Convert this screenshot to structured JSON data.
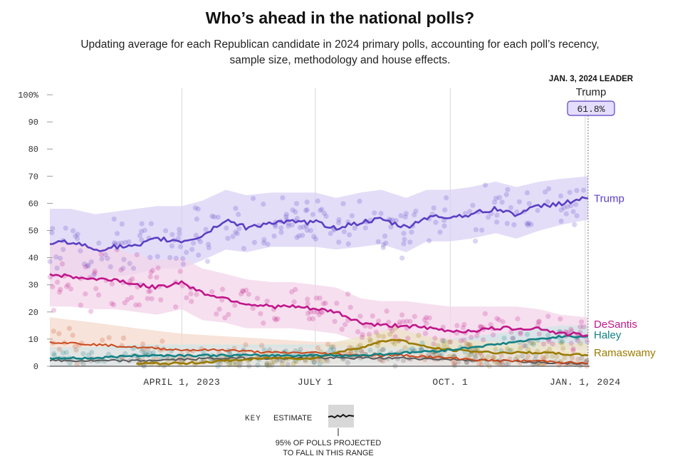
{
  "header": {
    "title": "Who’s ahead in the national polls?",
    "subtitle": "Updating average for each Republican candidate in 2024 primary polls, accounting for each poll’s recency, sample size, methodology and house effects."
  },
  "leader": {
    "heading": "JAN. 3, 2024 LEADER",
    "name": "Trump",
    "value": "61.8%",
    "date": "2024-01-03"
  },
  "key": {
    "label": "KEY",
    "estimate_label": "ESTIMATE",
    "range_label_line1": "95% OF POLLS PROJECTED",
    "range_label_line2": "TO FALL IN THIS RANGE"
  },
  "chart_data": {
    "type": "line",
    "x_type": "date",
    "xlim": [
      "2023-01-01",
      "2024-01-04"
    ],
    "ylim": [
      0,
      100
    ],
    "y_ticks": [
      0,
      10,
      20,
      30,
      40,
      50,
      60,
      70,
      80,
      90,
      100
    ],
    "y_tick_labels": [
      "0",
      "10",
      "20",
      "30",
      "40",
      "50",
      "60",
      "70",
      "80",
      "90",
      "100%"
    ],
    "x_ticks": [
      {
        "date": "2023-04-01",
        "label": "APRIL 1, 2023"
      },
      {
        "date": "2023-07-01",
        "label": "JULY 1"
      },
      {
        "date": "2023-10-01",
        "label": "OCT. 1"
      },
      {
        "date": "2024-01-01",
        "label": "JAN. 1, 2024"
      }
    ],
    "grid": "vertical",
    "series": [
      {
        "name": "Trump",
        "color": "#5b3fc4",
        "band_color": "#d9d2f5",
        "x": [
          "2023-01-01",
          "2023-01-15",
          "2023-02-01",
          "2023-02-15",
          "2023-03-01",
          "2023-03-15",
          "2023-04-01",
          "2023-04-15",
          "2023-05-01",
          "2023-05-15",
          "2023-06-01",
          "2023-06-15",
          "2023-07-01",
          "2023-07-15",
          "2023-08-01",
          "2023-08-15",
          "2023-09-01",
          "2023-09-15",
          "2023-10-01",
          "2023-10-15",
          "2023-11-01",
          "2023-11-15",
          "2023-12-01",
          "2023-12-15",
          "2024-01-03"
        ],
        "values": [
          45,
          46,
          43,
          44,
          44,
          47,
          46,
          48,
          54,
          51,
          53,
          53,
          53,
          51,
          53,
          54,
          51,
          55,
          55,
          56,
          58,
          56,
          59,
          60,
          61.8
        ],
        "band_lo": [
          32,
          34,
          32,
          33,
          34,
          36,
          36,
          39,
          43,
          42,
          44,
          44,
          44,
          43,
          44,
          45,
          42,
          46,
          46,
          47,
          49,
          47,
          50,
          52,
          54
        ],
        "band_hi": [
          58,
          58,
          56,
          57,
          58,
          59,
          59,
          61,
          65,
          63,
          64,
          64,
          64,
          62,
          64,
          65,
          62,
          65,
          65,
          66,
          68,
          66,
          68,
          69,
          70
        ]
      },
      {
        "name": "DeSantis",
        "color": "#c0168a",
        "band_color": "#f3d4e9",
        "x": [
          "2023-01-01",
          "2023-01-15",
          "2023-02-01",
          "2023-02-15",
          "2023-03-01",
          "2023-03-15",
          "2023-04-01",
          "2023-04-15",
          "2023-05-01",
          "2023-05-15",
          "2023-06-01",
          "2023-06-15",
          "2023-07-01",
          "2023-07-15",
          "2023-08-01",
          "2023-08-15",
          "2023-09-01",
          "2023-09-15",
          "2023-10-01",
          "2023-10-15",
          "2023-11-01",
          "2023-11-15",
          "2023-12-01",
          "2023-12-15",
          "2024-01-03"
        ],
        "values": [
          34,
          33,
          32,
          32,
          30,
          29,
          31,
          27,
          25,
          23,
          22,
          22,
          21,
          20,
          16,
          15,
          15,
          14,
          13,
          13,
          14,
          14,
          14,
          12,
          11.5
        ],
        "band_lo": [
          22,
          22,
          21,
          21,
          20,
          19,
          21,
          17,
          16,
          14,
          14,
          14,
          13,
          12,
          9,
          8,
          8,
          7,
          7,
          7,
          8,
          8,
          8,
          6,
          6
        ],
        "band_hi": [
          46,
          45,
          44,
          43,
          41,
          39,
          40,
          36,
          34,
          32,
          31,
          31,
          30,
          29,
          25,
          24,
          24,
          23,
          22,
          22,
          22,
          22,
          21,
          19,
          18
        ]
      },
      {
        "name": "Haley",
        "color": "#128184",
        "band_color": "#cfe6e6",
        "x": [
          "2023-01-01",
          "2023-02-01",
          "2023-03-01",
          "2023-04-01",
          "2023-05-01",
          "2023-06-01",
          "2023-07-01",
          "2023-08-01",
          "2023-09-01",
          "2023-10-01",
          "2023-10-15",
          "2023-11-01",
          "2023-11-15",
          "2023-12-01",
          "2023-12-15",
          "2024-01-03"
        ],
        "values": [
          3,
          3,
          4,
          4,
          4,
          4,
          4,
          4,
          5,
          6,
          7,
          8,
          9,
          10,
          11,
          11
        ],
        "band_lo": [
          0,
          0,
          1,
          1,
          1,
          1,
          1,
          1,
          2,
          3,
          3,
          4,
          5,
          6,
          7,
          7
        ],
        "band_hi": [
          7,
          7,
          8,
          8,
          8,
          8,
          8,
          8,
          9,
          10,
          11,
          12,
          13,
          14,
          15,
          15
        ]
      },
      {
        "name": "Ramaswamy",
        "color": "#9a7a00",
        "band_color": "#ece3c6",
        "x": [
          "2023-03-01",
          "2023-04-01",
          "2023-05-01",
          "2023-06-01",
          "2023-07-01",
          "2023-07-15",
          "2023-08-01",
          "2023-08-15",
          "2023-08-25",
          "2023-09-15",
          "2023-10-01",
          "2023-11-01",
          "2023-12-01",
          "2024-01-03"
        ],
        "values": [
          1,
          1,
          2,
          3,
          3,
          5,
          7,
          9,
          10,
          7,
          6,
          5,
          5,
          4
        ],
        "band_lo": [
          0,
          0,
          0,
          0,
          0,
          1,
          3,
          5,
          6,
          3,
          2,
          1,
          1,
          1
        ],
        "band_hi": [
          3,
          3,
          5,
          6,
          7,
          9,
          11,
          13,
          14,
          11,
          10,
          9,
          9,
          8
        ]
      },
      {
        "color": "#c94a1e",
        "band_color": "#f4d9cc",
        "x": [
          "2023-01-01",
          "2023-02-01",
          "2023-03-01",
          "2023-04-01",
          "2023-05-01",
          "2023-06-01",
          "2023-07-01",
          "2023-08-01",
          "2023-09-01",
          "2023-10-01",
          "2023-11-01",
          "2023-12-01",
          "2024-01-03"
        ],
        "values": [
          9,
          8,
          7,
          6,
          6,
          5,
          5,
          4,
          4,
          3,
          2,
          2,
          1
        ],
        "band_lo": [
          3,
          3,
          2,
          2,
          2,
          1,
          1,
          1,
          1,
          0,
          0,
          0,
          0
        ],
        "band_hi": [
          18,
          16,
          14,
          12,
          11,
          10,
          9,
          9,
          8,
          7,
          6,
          6,
          5
        ]
      },
      {
        "color": "#5a5a5a",
        "band_color": "#e4e4e4",
        "x": [
          "2023-01-01",
          "2023-03-01",
          "2023-05-01",
          "2023-07-01",
          "2023-09-01",
          "2023-11-01",
          "2024-01-03"
        ],
        "values": [
          2,
          2,
          3,
          3,
          3,
          2,
          1
        ],
        "band_lo": [
          0,
          0,
          0,
          0,
          0,
          0,
          0
        ],
        "band_hi": [
          6,
          6,
          7,
          7,
          7,
          6,
          4
        ]
      }
    ],
    "labels": [
      {
        "text": "Trump",
        "color": "#5b3fc4",
        "y": 61.8
      },
      {
        "text": "DeSantis",
        "color": "#c0168a",
        "y": 15.5
      },
      {
        "text": "Haley",
        "color": "#128184",
        "y": 11.5
      },
      {
        "text": "Ramaswamy",
        "color": "#9a7a00",
        "y": 5
      }
    ]
  }
}
